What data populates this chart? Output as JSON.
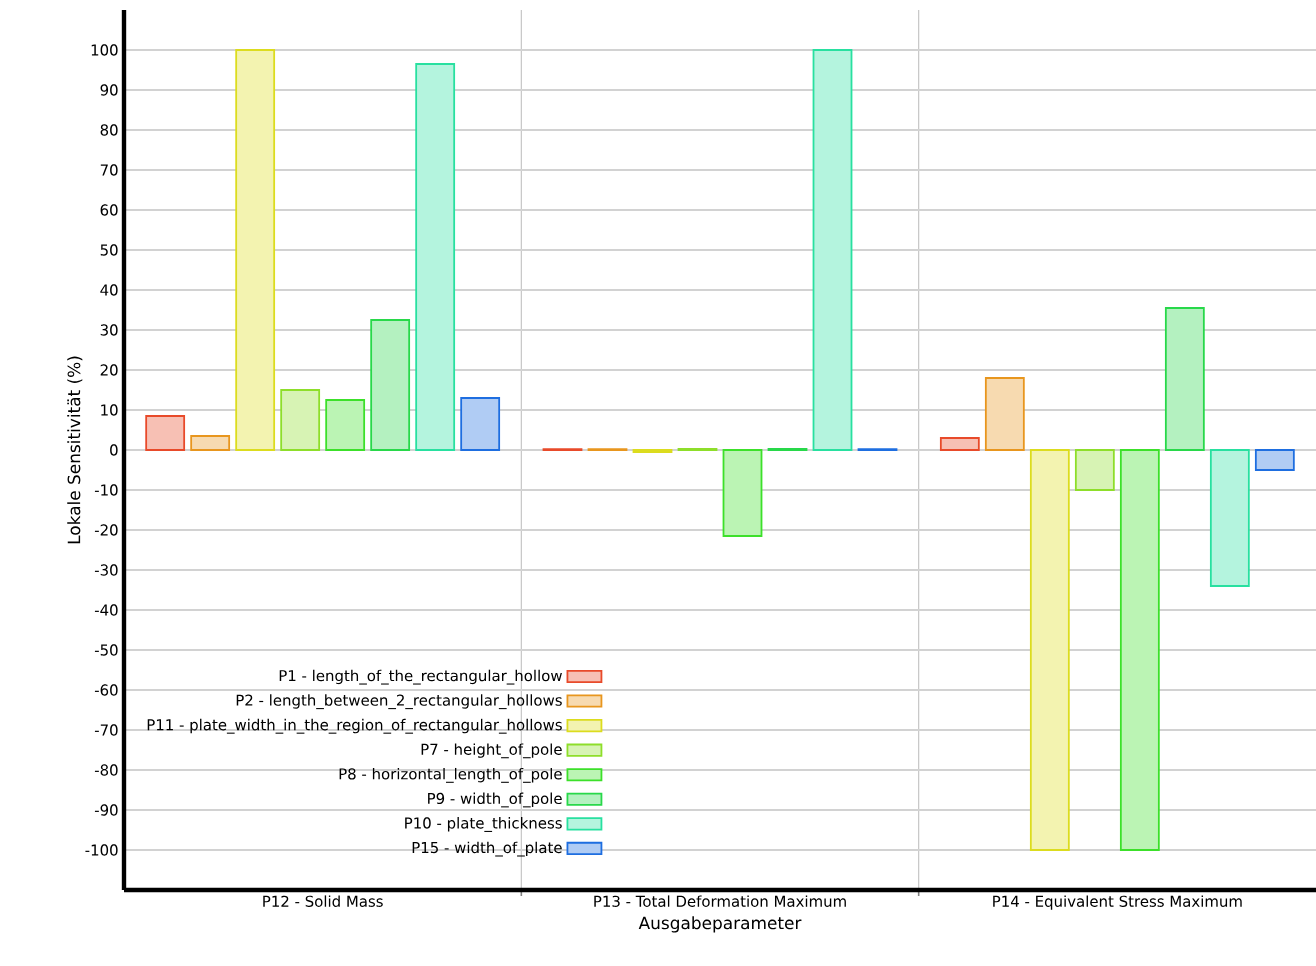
{
  "chart_data": {
    "type": "bar",
    "xlabel": "Ausgabeparameter",
    "ylabel": "Lokale Sensitivität (%)",
    "categories": [
      "P12 - Solid Mass",
      "P13 - Total Deformation Maximum",
      "P14 - Equivalent Stress Maximum"
    ],
    "series": [
      {
        "name": "P1 - length_of_the_rectangular_hollow",
        "color": "#e84a2a",
        "values": [
          8.5,
          0.2,
          3
        ]
      },
      {
        "name": "P2 - length_between_2_rectangular_hollows",
        "color": "#e8961e",
        "values": [
          3.5,
          0.2,
          18
        ]
      },
      {
        "name": "P11 - plate_width_in_the_region_of_rectangular_hollows",
        "color": "#dcdc1e",
        "values": [
          100,
          -0.5,
          -100
        ]
      },
      {
        "name": "P7 - height_of_pole",
        "color": "#8ede2a",
        "values": [
          15,
          0.3,
          -10
        ]
      },
      {
        "name": "P8 - horizontal_length_of_pole",
        "color": "#3ce02a",
        "values": [
          12.5,
          -21.5,
          -100
        ]
      },
      {
        "name": "P9 - width_of_pole",
        "color": "#28d84a",
        "values": [
          32.5,
          0.3,
          35.5
        ]
      },
      {
        "name": "P10 - plate_thickness",
        "color": "#28e0a0",
        "values": [
          96.5,
          100,
          -34
        ]
      },
      {
        "name": "P15 - width_of_plate",
        "color": "#1e6ee0",
        "values": [
          13,
          0.2,
          -5
        ]
      }
    ],
    "ylim": [
      -110,
      110
    ],
    "yticks": [
      -100,
      -90,
      -80,
      -70,
      -60,
      -50,
      -40,
      -30,
      -20,
      -10,
      0,
      10,
      20,
      30,
      40,
      50,
      60,
      70,
      80,
      90,
      100
    ],
    "grid": true,
    "legend": "bottom left"
  }
}
